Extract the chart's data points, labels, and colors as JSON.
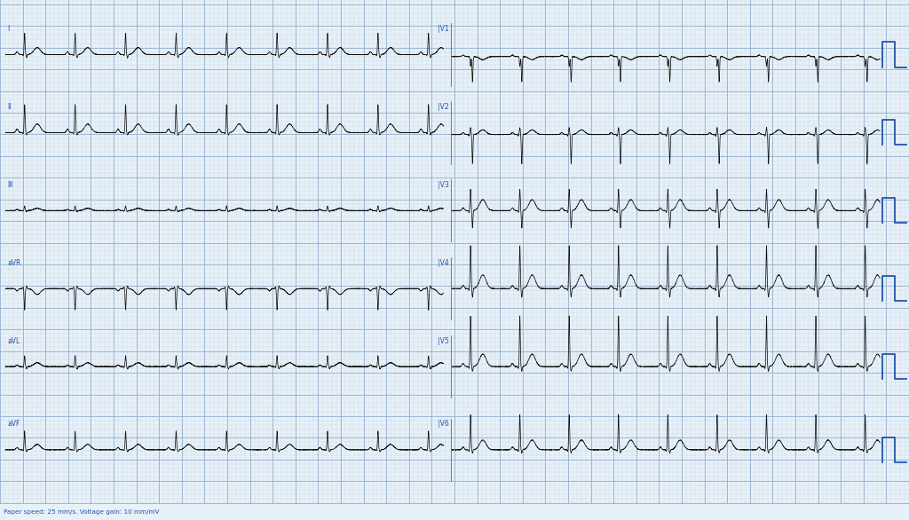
{
  "background_color": "#e8f0f8",
  "grid_major_color": "#9ab4d0",
  "grid_minor_color": "#c4d4e4",
  "ecg_color": "#111111",
  "label_color": "#2255aa",
  "cal_color": "#2255aa",
  "footer_text": "Paper speed: 25 mm/s. Voltage gain: 10 mm/mV",
  "fig_width": 10.24,
  "fig_height": 5.86,
  "dpi": 100,
  "heart_rate": 52,
  "left_leads": [
    "I",
    "II",
    "III",
    "aVR",
    "aVL",
    "aVF"
  ],
  "right_leads": [
    "V1",
    "V2",
    "V3",
    "V4",
    "V5",
    "V6"
  ],
  "lead_params": {
    "I": {
      "p": 0.07,
      "q": -0.02,
      "r": 0.55,
      "s": -0.08,
      "t": 0.18,
      "noise": 0.003,
      "baseline": 0.0
    },
    "II": {
      "p": 0.09,
      "q": -0.03,
      "r": 0.72,
      "s": -0.06,
      "t": 0.22,
      "noise": 0.003,
      "baseline": 0.0
    },
    "III": {
      "p": 0.03,
      "q": -0.01,
      "r": 0.12,
      "s": -0.03,
      "t": 0.06,
      "noise": 0.004,
      "baseline": 0.0
    },
    "aVR": {
      "p": -0.06,
      "q": 0.04,
      "r": -0.55,
      "s": 0.07,
      "t": -0.15,
      "noise": 0.003,
      "baseline": 0.0
    },
    "aVL": {
      "p": 0.04,
      "q": -0.02,
      "r": 0.28,
      "s": -0.06,
      "t": 0.1,
      "noise": 0.004,
      "baseline": 0.0
    },
    "aVF": {
      "p": 0.06,
      "q": -0.02,
      "r": 0.48,
      "s": -0.05,
      "t": 0.14,
      "noise": 0.003,
      "baseline": 0.0
    },
    "V1": {
      "p": 0.04,
      "q": 0.0,
      "r": -0.25,
      "s": -0.65,
      "t": -0.08,
      "noise": 0.003,
      "baseline": -0.05
    },
    "V2": {
      "p": 0.05,
      "q": -0.04,
      "r": 0.18,
      "s": -0.75,
      "t": 0.12,
      "noise": 0.003,
      "baseline": -0.05
    },
    "V3": {
      "p": 0.07,
      "q": -0.05,
      "r": 0.55,
      "s": -0.45,
      "t": 0.28,
      "noise": 0.003,
      "baseline": 0.0
    },
    "V4": {
      "p": 0.08,
      "q": -0.05,
      "r": 1.1,
      "s": -0.22,
      "t": 0.35,
      "noise": 0.003,
      "baseline": 0.0
    },
    "V5": {
      "p": 0.08,
      "q": -0.05,
      "r": 1.3,
      "s": -0.12,
      "t": 0.32,
      "noise": 0.003,
      "baseline": 0.0
    },
    "V6": {
      "p": 0.07,
      "q": -0.04,
      "r": 0.9,
      "s": -0.08,
      "t": 0.25,
      "noise": 0.003,
      "baseline": 0.0
    }
  },
  "seeds": {
    "I": 1,
    "II": 2,
    "III": 3,
    "aVR": 4,
    "aVL": 5,
    "aVF": 6,
    "V1": 7,
    "V2": 8,
    "V3": 9,
    "V4": 10,
    "V5": 11,
    "V6": 12
  }
}
